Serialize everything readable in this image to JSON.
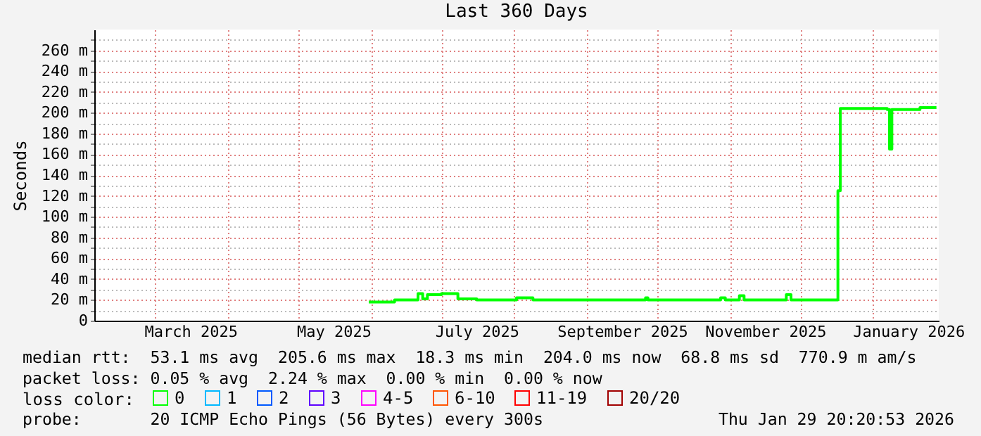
{
  "chart_data": {
    "type": "step",
    "title": "Last 360 Days",
    "ylabel": "Seconds",
    "legend_title": "loss color:",
    "legend": "bottom left",
    "grid": true,
    "x": [
      "2025-05-31",
      "2025-06-11",
      "2025-06-21",
      "2025-06-23",
      "2025-06-25",
      "2025-07-01",
      "2025-07-08",
      "2025-07-16",
      "2025-08-02",
      "2025-08-09",
      "2025-09-26",
      "2025-09-27",
      "2025-10-28",
      "2025-10-30",
      "2025-11-05",
      "2025-11-07",
      "2025-11-25",
      "2025-11-27",
      "2025-12-16",
      "2025-12-17",
      "2025-12-18",
      "2026-01-07",
      "2026-01-08",
      "2026-01-09",
      "2026-01-21",
      "2026-01-28"
    ],
    "series": [
      {
        "name": "0",
        "color": "#00ff00",
        "values": [
          18,
          20,
          26,
          21,
          25,
          26,
          21,
          20,
          22,
          20,
          22,
          20,
          22,
          20,
          24,
          20,
          25,
          20,
          20,
          125,
          204,
          203,
          165,
          203,
          205,
          205
        ]
      },
      {
        "name": "1",
        "color": "#00b8ff",
        "values": [
          null,
          null,
          null,
          null,
          null,
          null,
          null,
          null,
          null,
          null,
          null,
          null,
          null,
          null,
          null,
          null,
          null,
          null,
          null,
          null,
          null,
          null,
          null,
          null,
          null,
          null
        ]
      },
      {
        "name": "2",
        "color": "#0059ff",
        "values": [
          null,
          null,
          null,
          null,
          null,
          null,
          null,
          null,
          null,
          null,
          null,
          null,
          null,
          null,
          null,
          null,
          null,
          null,
          null,
          null,
          null,
          null,
          null,
          null,
          null,
          null
        ]
      },
      {
        "name": "3",
        "color": "#5e00ff",
        "values": [
          null,
          null,
          null,
          null,
          null,
          null,
          null,
          null,
          null,
          null,
          null,
          null,
          null,
          null,
          null,
          null,
          null,
          null,
          null,
          null,
          null,
          null,
          null,
          null,
          null,
          null
        ]
      },
      {
        "name": "4-5",
        "color": "#ff00ff",
        "values": [
          null,
          null,
          null,
          null,
          null,
          null,
          null,
          null,
          null,
          null,
          null,
          null,
          null,
          null,
          null,
          null,
          null,
          null,
          null,
          null,
          null,
          null,
          null,
          null,
          null,
          null
        ]
      },
      {
        "name": "6-10",
        "color": "#ff5500",
        "values": [
          null,
          null,
          null,
          null,
          null,
          null,
          null,
          null,
          null,
          null,
          null,
          null,
          null,
          null,
          null,
          null,
          null,
          null,
          null,
          null,
          null,
          null,
          null,
          null,
          null,
          null
        ]
      },
      {
        "name": "11-19",
        "color": "#ff0000",
        "values": [
          null,
          null,
          null,
          null,
          null,
          null,
          null,
          null,
          null,
          null,
          null,
          null,
          null,
          null,
          null,
          null,
          null,
          null,
          null,
          null,
          null,
          null,
          null,
          null,
          null,
          null
        ]
      },
      {
        "name": "20/20",
        "color": "#a10000",
        "values": [
          null,
          null,
          null,
          null,
          null,
          null,
          null,
          null,
          null,
          null,
          null,
          null,
          null,
          null,
          null,
          null,
          null,
          null,
          null,
          null,
          null,
          null,
          null,
          null,
          null,
          null
        ]
      }
    ],
    "xlim": [
      "2025-02-03",
      "2026-01-29"
    ],
    "xticks": [
      {
        "value": "2025-03-01",
        "label": null
      },
      {
        "value": "2025-03-16",
        "label": "March 2025"
      },
      {
        "value": "2025-04-01",
        "label": null
      },
      {
        "value": "2025-05-01",
        "label": null
      },
      {
        "value": "2025-05-16",
        "label": "May 2025"
      },
      {
        "value": "2025-06-01",
        "label": null
      },
      {
        "value": "2025-07-01",
        "label": null
      },
      {
        "value": "2025-07-16",
        "label": "July 2025"
      },
      {
        "value": "2025-08-01",
        "label": null
      },
      {
        "value": "2025-09-01",
        "label": null
      },
      {
        "value": "2025-09-16",
        "label": "September 2025"
      },
      {
        "value": "2025-10-01",
        "label": null
      },
      {
        "value": "2025-11-01",
        "label": null
      },
      {
        "value": "2025-11-16",
        "label": "November 2025"
      },
      {
        "value": "2025-12-01",
        "label": null
      },
      {
        "value": "2026-01-01",
        "label": null
      },
      {
        "value": "2026-01-16",
        "label": "January 2026"
      }
    ],
    "ylim": [
      0,
      280
    ],
    "yticks": [
      0,
      {
        "value": 10,
        "label": null
      },
      {
        "value": 20,
        "label": "20 m"
      },
      {
        "value": 30,
        "label": null
      },
      {
        "value": 40,
        "label": "40 m"
      },
      {
        "value": 50,
        "label": null
      },
      {
        "value": 60,
        "label": "60 m"
      },
      {
        "value": 70,
        "label": null
      },
      {
        "value": 80,
        "label": "80 m"
      },
      {
        "value": 90,
        "label": null
      },
      {
        "value": 100,
        "label": "100 m"
      },
      {
        "value": 110,
        "label": null
      },
      {
        "value": 120,
        "label": "120 m"
      },
      {
        "value": 130,
        "label": null
      },
      {
        "value": 140,
        "label": "140 m"
      },
      {
        "value": 150,
        "label": null
      },
      {
        "value": 160,
        "label": "160 m"
      },
      {
        "value": 170,
        "label": null
      },
      {
        "value": 180,
        "label": "180 m"
      },
      {
        "value": 190,
        "label": null
      },
      {
        "value": 200,
        "label": "200 m"
      },
      {
        "value": 210,
        "label": null
      },
      {
        "value": 220,
        "label": "220 m"
      },
      {
        "value": 230,
        "label": null
      },
      {
        "value": 240,
        "label": "240 m"
      },
      {
        "value": 250,
        "label": null
      },
      {
        "value": 260,
        "label": "260 m"
      },
      {
        "value": 270,
        "label": null
      }
    ],
    "annotations": [
      "median rtt:  53.1 ms avg  205.6 ms max  18.3 ms min  204.0 ms now  68.8 ms sd  770.9 m am/s",
      "packet loss: 0.05 % avg  2.24 % max  0.00 % min  0.00 % now",
      "probe:       20 ICMP Echo Pings (56 Bytes) every 300s",
      "Thu Jan 29 20:20:53 2026"
    ]
  }
}
